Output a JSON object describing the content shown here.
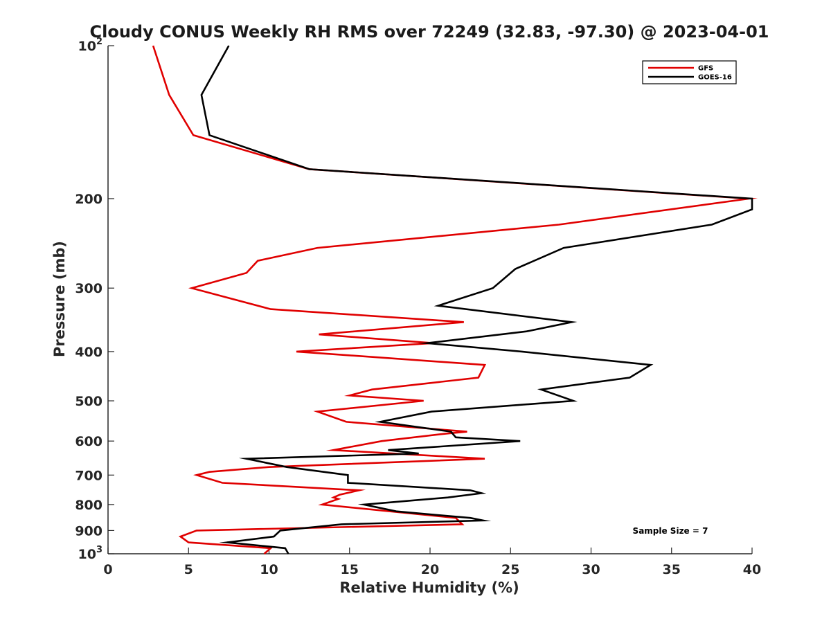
{
  "chart_data": {
    "type": "line",
    "title": "Cloudy CONUS Weekly RH RMS over 72249 (32.83, -97.30) @ 2023-04-01",
    "xlabel": "Relative Humidity (%)",
    "ylabel": "Pressure (mb)",
    "xlim": [
      0,
      40
    ],
    "ylim": [
      100,
      1000
    ],
    "y_scale": "log",
    "y_reversed": true,
    "x_ticks": [
      "0",
      "5",
      "10",
      "15",
      "20",
      "25",
      "30",
      "35",
      "40"
    ],
    "y_ticks": [
      {
        "value": 100,
        "base": "10",
        "sup": "2"
      },
      {
        "value": 200,
        "label": "200"
      },
      {
        "value": 300,
        "label": "300"
      },
      {
        "value": 400,
        "label": "400"
      },
      {
        "value": 500,
        "label": "500"
      },
      {
        "value": 600,
        "label": "600"
      },
      {
        "value": 700,
        "label": "700"
      },
      {
        "value": 800,
        "label": "800"
      },
      {
        "value": 900,
        "label": "900"
      },
      {
        "value": 1000,
        "base": "10",
        "sup": "3"
      }
    ],
    "grid": false,
    "legend_position": "top-right",
    "annotation": "Sample Size = 7",
    "series": [
      {
        "name": "GFS",
        "color": "#e00000",
        "points": [
          [
            2.8,
            100
          ],
          [
            3.8,
            125
          ],
          [
            5.3,
            150
          ],
          [
            12.5,
            175
          ],
          [
            39.8,
            200
          ],
          [
            28.0,
            225
          ],
          [
            13.0,
            250
          ],
          [
            9.3,
            265
          ],
          [
            8.6,
            280
          ],
          [
            5.2,
            300
          ],
          [
            10.1,
            330
          ],
          [
            22.1,
            350
          ],
          [
            13.1,
            370
          ],
          [
            20.2,
            385
          ],
          [
            11.7,
            400
          ],
          [
            23.4,
            425
          ],
          [
            23.0,
            450
          ],
          [
            16.4,
            475
          ],
          [
            15.0,
            488
          ],
          [
            19.6,
            500
          ],
          [
            13.0,
            525
          ],
          [
            14.8,
            550
          ],
          [
            22.3,
            575
          ],
          [
            21.0,
            580
          ],
          [
            17.0,
            600
          ],
          [
            14.0,
            625
          ],
          [
            23.4,
            650
          ],
          [
            10.0,
            675
          ],
          [
            6.3,
            690
          ],
          [
            5.5,
            700
          ],
          [
            7.1,
            725
          ],
          [
            15.6,
            750
          ],
          [
            14.4,
            765
          ],
          [
            14.0,
            775
          ],
          [
            14.3,
            780
          ],
          [
            13.3,
            800
          ],
          [
            21.6,
            850
          ],
          [
            22.0,
            875
          ],
          [
            5.5,
            900
          ],
          [
            4.5,
            925
          ],
          [
            5.0,
            950
          ],
          [
            10.1,
            975
          ],
          [
            9.7,
            1000
          ]
        ]
      },
      {
        "name": "GOES-16",
        "color": "#000000",
        "points": [
          [
            7.5,
            100
          ],
          [
            5.8,
            125
          ],
          [
            6.3,
            150
          ],
          [
            12.5,
            175
          ],
          [
            40.0,
            200
          ],
          [
            40.0,
            210
          ],
          [
            37.5,
            225
          ],
          [
            28.3,
            250
          ],
          [
            25.3,
            275
          ],
          [
            23.9,
            300
          ],
          [
            20.5,
            325
          ],
          [
            28.8,
            350
          ],
          [
            26.0,
            365
          ],
          [
            19.8,
            385
          ],
          [
            25.7,
            400
          ],
          [
            33.7,
            425
          ],
          [
            32.4,
            450
          ],
          [
            26.9,
            475
          ],
          [
            28.9,
            500
          ],
          [
            20.1,
            525
          ],
          [
            16.9,
            550
          ],
          [
            21.3,
            575
          ],
          [
            21.6,
            590
          ],
          [
            25.6,
            600
          ],
          [
            17.4,
            625
          ],
          [
            19.3,
            635
          ],
          [
            8.6,
            650
          ],
          [
            11.1,
            675
          ],
          [
            14.9,
            700
          ],
          [
            14.9,
            725
          ],
          [
            22.5,
            750
          ],
          [
            23.2,
            760
          ],
          [
            21.1,
            775
          ],
          [
            15.9,
            800
          ],
          [
            17.9,
            825
          ],
          [
            22.5,
            850
          ],
          [
            23.3,
            860
          ],
          [
            14.5,
            875
          ],
          [
            10.7,
            900
          ],
          [
            10.3,
            925
          ],
          [
            7.4,
            950
          ],
          [
            11.0,
            975
          ],
          [
            11.2,
            1000
          ]
        ]
      }
    ]
  }
}
